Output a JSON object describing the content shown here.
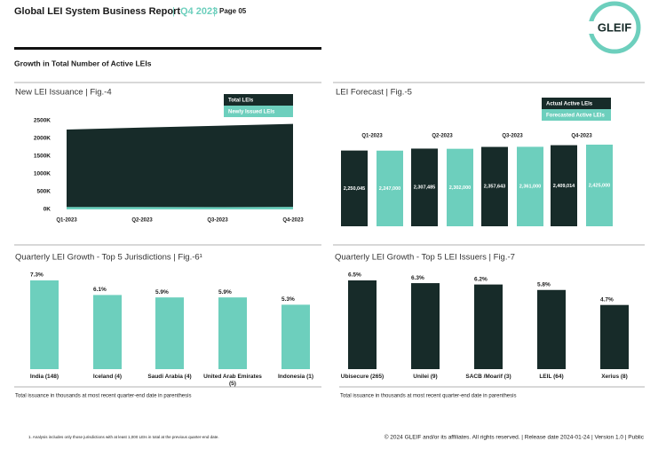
{
  "header": {
    "title": "Global LEI System Business Report",
    "quarter": "Q4 2023",
    "page": "Page 05",
    "logo": "GLEIF"
  },
  "section_title": "Growth in Total Number of Active LEIs",
  "chart_data": [
    {
      "type": "area",
      "title": "New LEI Issuance | Fig.-4",
      "categories": [
        "Q1-2023",
        "Q2-2023",
        "Q3-2023",
        "Q4-2023"
      ],
      "series": [
        {
          "name": "Total LEIs",
          "color": "#172b29",
          "values": [
            2250045,
            2307485,
            2357643,
            2409014
          ]
        },
        {
          "name": "Newly Issued LEIs",
          "color": "#6dcfbd",
          "values": [
            70000,
            68000,
            66000,
            72000
          ]
        }
      ],
      "ylim": [
        0,
        2500000
      ],
      "yticks": [
        {
          "value": 0,
          "label": "0K"
        },
        {
          "value": 500000,
          "label": "500K"
        },
        {
          "value": 1000000,
          "label": "1000K"
        },
        {
          "value": 1500000,
          "label": "1500K"
        },
        {
          "value": 2000000,
          "label": "2000K"
        },
        {
          "value": 2500000,
          "label": "2500K"
        }
      ]
    },
    {
      "type": "grouped-bar",
      "title": "LEI Forecast | Fig.-5",
      "categories": [
        "Q1-2023",
        "Q2-2023",
        "Q3-2023",
        "Q4-2023"
      ],
      "series": [
        {
          "name": "Actual Active LEIs",
          "color": "#172b29",
          "values": [
            2250045,
            2307485,
            2357643,
            2409014
          ],
          "value_labels": [
            "2,250,045",
            "2,307,485",
            "2,357,643",
            "2,409,014"
          ]
        },
        {
          "name": "Forecasted Active LEIs",
          "color": "#6dcfbd",
          "values": [
            2247000,
            2302000,
            2361000,
            2425000
          ],
          "value_labels": [
            "2,247,000",
            "2,302,000",
            "2,361,000",
            "2,425,000"
          ]
        }
      ]
    },
    {
      "type": "bar",
      "title": "Quarterly LEI Growth - Top 5 Jurisdictions | Fig.-6¹",
      "categories": [
        "India (148)",
        "Iceland (4)",
        "Saudi Arabia (4)",
        "United Arab Emirates (5)",
        "Indonesia (1)"
      ],
      "values": [
        7.3,
        6.1,
        5.9,
        5.9,
        5.3
      ],
      "value_labels": [
        "7.3%",
        "6.1%",
        "5.9%",
        "5.9%",
        "5.3%"
      ],
      "color": "#6dcfbd",
      "note": "Total issuance in thousands at most recent quarter-end date in parenthesis"
    },
    {
      "type": "bar",
      "title": "Quarterly LEI Growth - Top 5 LEI Issuers | Fig.-7",
      "categories": [
        "Ubisecure (265)",
        "Unilei (9)",
        "SACB /Moarif (3)",
        "LEIL (64)",
        "Xerius (8)"
      ],
      "values": [
        6.5,
        6.3,
        6.2,
        5.8,
        4.7
      ],
      "value_labels": [
        "6.5%",
        "6.3%",
        "6.2%",
        "5.8%",
        "4.7%"
      ],
      "color": "#172b29",
      "note": "Total issuance in thousands at most recent quarter-end date in parenthesis"
    }
  ],
  "footnote": "1. Analysis includes only those jurisdictions with at least 1,000 LEIs in total at the previous quarter-end date.",
  "footer": "© 2024 GLEIF and/or its affiliates. All rights reserved. | Release date 2024-01-24 | Version 1.0 | Public"
}
